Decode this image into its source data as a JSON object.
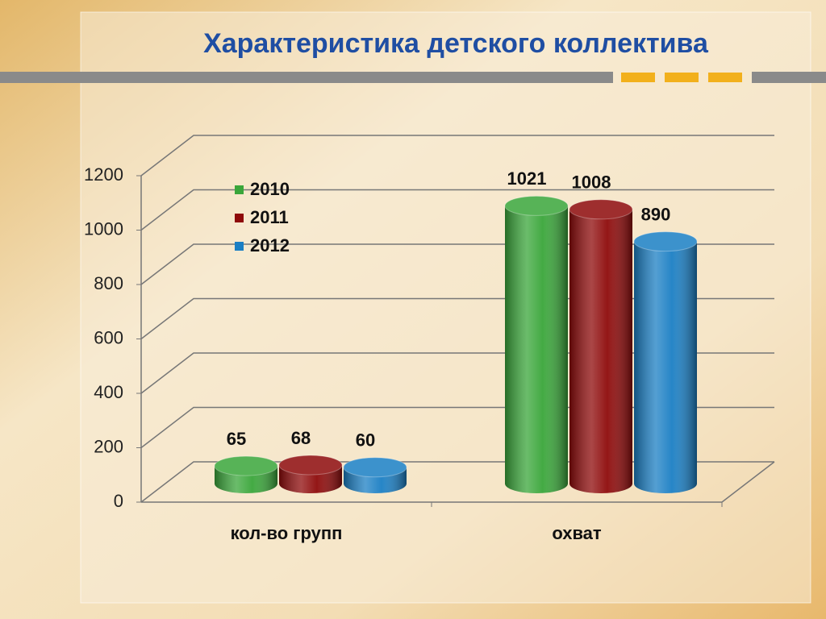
{
  "chart_data": {
    "type": "bar3d",
    "title": "Характеристика детского коллектива",
    "categories": [
      "кол-во групп",
      "охват"
    ],
    "series": [
      {
        "name": "2010",
        "color": "#3aa63a",
        "values": [
          65,
          1021
        ]
      },
      {
        "name": "2011",
        "color": "#8e0a0a",
        "values": [
          68,
          1008
        ]
      },
      {
        "name": "2012",
        "color": "#1b7fc4",
        "values": [
          60,
          890
        ]
      }
    ],
    "ylim": [
      0,
      1200
    ],
    "yticks": [
      0,
      200,
      400,
      600,
      800,
      1000,
      1200
    ],
    "grid": true,
    "legend": "top-left"
  }
}
